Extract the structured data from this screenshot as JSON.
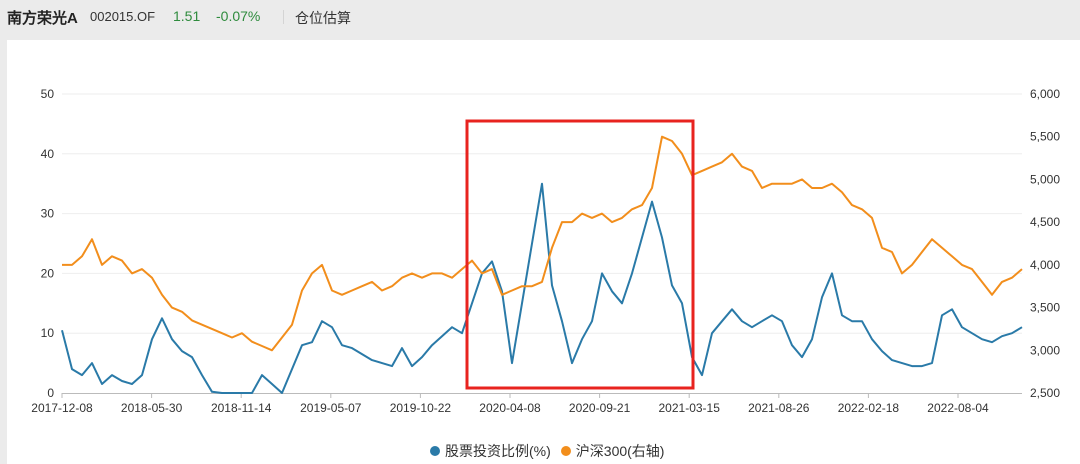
{
  "header": {
    "fund_name": "南方荣光A",
    "fund_code": "002015.OF",
    "price": "1.51",
    "change": "-0.07%",
    "tab_label": "仓位估算"
  },
  "colors": {
    "stock_ratio": "#2a7aa8",
    "csi300": "#f28e1c",
    "highlight_box": "#e8231f",
    "price_green": "#2e8b3d"
  },
  "legend": {
    "series1": "股票投资比例(%)",
    "series2": "沪深300(右轴)"
  },
  "chart_data": {
    "type": "line",
    "title": "",
    "xlabel": "",
    "ylabel_left": "股票投资比例(%)",
    "ylabel_right": "沪深300",
    "x_tick_labels": [
      "2017-12-08",
      "2018-05-30",
      "2018-11-14",
      "2019-05-07",
      "2019-10-22",
      "2020-04-08",
      "2020-09-21",
      "2021-03-15",
      "2021-08-26",
      "2022-02-18",
      "2022-08-04"
    ],
    "y_left_ticks": [
      "0",
      "10",
      "20",
      "30",
      "40",
      "50"
    ],
    "y_left_range": [
      0,
      50
    ],
    "y_right_ticks": [
      "2,500",
      "3,000",
      "3,500",
      "4,000",
      "4,500",
      "5,000",
      "5,500",
      "6,000"
    ],
    "y_right_range": [
      2500,
      6000
    ],
    "grid": true,
    "legend_position": "bottom",
    "annotation": "red rectangle highlighting 2020-03 to 2021-03",
    "highlight_range": [
      "2020-03",
      "2021-03"
    ],
    "series": [
      {
        "name": "股票投资比例(%)",
        "axis": "left",
        "values": [
          10.5,
          4,
          3,
          5,
          1.5,
          3,
          2,
          1.5,
          3,
          9,
          12.5,
          9,
          7,
          6,
          3,
          0.2,
          0,
          0,
          0,
          0,
          3,
          1.5,
          0,
          4,
          8,
          8.5,
          12,
          11,
          8,
          7.5,
          6.5,
          5.5,
          5,
          4.5,
          7.5,
          4.5,
          6,
          8,
          9.5,
          11,
          10,
          15,
          20,
          22,
          17,
          5,
          15,
          25,
          35,
          18,
          12,
          5,
          9,
          12,
          20,
          17,
          15,
          20,
          26,
          32,
          26,
          18,
          15,
          6,
          3,
          10,
          12,
          14,
          12,
          11,
          12,
          13,
          12,
          8,
          6,
          9,
          16,
          20,
          13,
          12,
          12,
          9,
          7,
          5.5,
          5,
          4.5,
          4.5,
          5,
          13,
          14,
          11,
          10,
          9,
          8.5,
          9.5,
          10,
          11
        ]
      },
      {
        "name": "沪深300(右轴)",
        "axis": "right",
        "values": [
          4000,
          4000,
          4100,
          4300,
          4000,
          4100,
          4050,
          3900,
          3950,
          3850,
          3650,
          3500,
          3450,
          3350,
          3300,
          3250,
          3200,
          3150,
          3200,
          3100,
          3050,
          3000,
          3150,
          3300,
          3700,
          3900,
          4000,
          3700,
          3650,
          3700,
          3750,
          3800,
          3700,
          3750,
          3850,
          3900,
          3850,
          3900,
          3900,
          3850,
          3950,
          4050,
          3900,
          3950,
          3650,
          3700,
          3750,
          3750,
          3800,
          4200,
          4500,
          4500,
          4600,
          4550,
          4600,
          4500,
          4550,
          4650,
          4700,
          4900,
          5500,
          5450,
          5300,
          5050,
          5100,
          5150,
          5200,
          5300,
          5150,
          5100,
          4900,
          4950,
          4950,
          4950,
          5000,
          4900,
          4900,
          4950,
          4850,
          4700,
          4650,
          4550,
          4200,
          4150,
          3900,
          4000,
          4150,
          4300,
          4200,
          4100,
          4000,
          3950,
          3800,
          3650,
          3800,
          3850,
          3950
        ]
      }
    ]
  }
}
